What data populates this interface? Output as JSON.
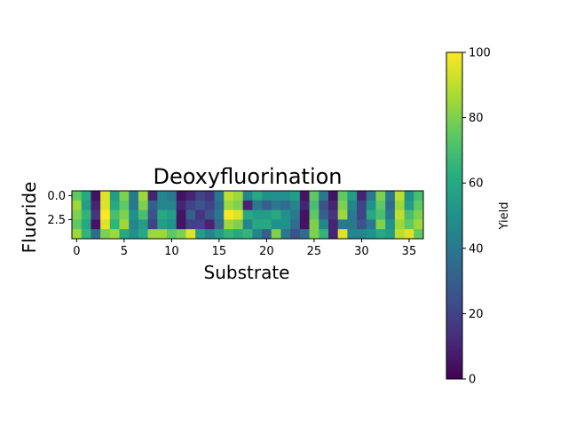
{
  "chart_data": {
    "type": "heatmap",
    "title": "Deoxyfluorination",
    "xlabel": "Substrate",
    "ylabel": "Fluoride",
    "x_ticks": [
      0,
      5,
      10,
      15,
      20,
      25,
      30,
      35
    ],
    "x_tick_labels": [
      "0",
      "5",
      "10",
      "15",
      "20",
      "25",
      "30",
      "35"
    ],
    "y_ticks": [
      0,
      2.5
    ],
    "y_tick_labels": [
      "0.0",
      "2.5"
    ],
    "colorbar": {
      "label": "Yield",
      "range": [
        0,
        100
      ],
      "ticks": [
        0,
        20,
        40,
        60,
        80,
        100
      ],
      "tick_labels": [
        "0",
        "20",
        "40",
        "60",
        "80",
        "100"
      ],
      "colormap": "viridis"
    },
    "n_rows": 5,
    "n_cols": 37,
    "values": [
      [
        75,
        60,
        5,
        95,
        55,
        80,
        40,
        85,
        10,
        45,
        40,
        5,
        10,
        20,
        15,
        40,
        90,
        85,
        45,
        60,
        50,
        50,
        50,
        55,
        5,
        75,
        40,
        5,
        75,
        55,
        10,
        40,
        80,
        40,
        90,
        50,
        70
      ],
      [
        85,
        55,
        10,
        95,
        60,
        75,
        40,
        80,
        30,
        45,
        45,
        10,
        20,
        25,
        20,
        35,
        85,
        80,
        10,
        40,
        30,
        40,
        35,
        45,
        10,
        70,
        25,
        10,
        80,
        45,
        20,
        50,
        75,
        35,
        85,
        55,
        75
      ],
      [
        80,
        65,
        15,
        100,
        70,
        80,
        50,
        70,
        25,
        60,
        55,
        5,
        30,
        15,
        25,
        40,
        100,
        95,
        60,
        55,
        55,
        60,
        50,
        40,
        5,
        75,
        30,
        15,
        85,
        40,
        20,
        60,
        70,
        40,
        90,
        70,
        80
      ],
      [
        75,
        60,
        5,
        95,
        65,
        85,
        45,
        55,
        20,
        55,
        50,
        5,
        20,
        20,
        10,
        35,
        85,
        80,
        45,
        60,
        60,
        50,
        50,
        35,
        5,
        80,
        45,
        10,
        40,
        40,
        25,
        40,
        80,
        50,
        85,
        75,
        85
      ],
      [
        85,
        65,
        35,
        80,
        85,
        60,
        50,
        60,
        85,
        85,
        75,
        80,
        95,
        55,
        45,
        55,
        65,
        60,
        65,
        45,
        30,
        80,
        40,
        25,
        35,
        80,
        65,
        10,
        95,
        45,
        45,
        50,
        60,
        55,
        90,
        95,
        75
      ]
    ]
  }
}
